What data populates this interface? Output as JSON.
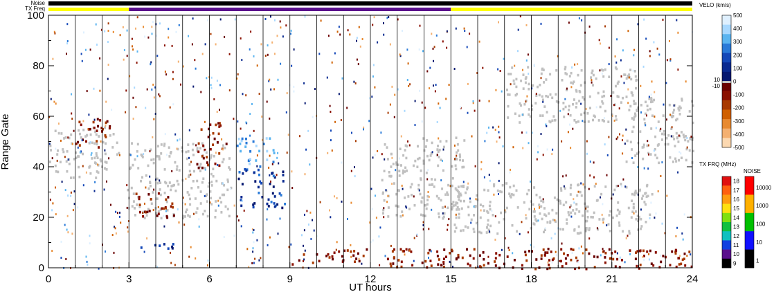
{
  "chart_data": {
    "type": "heatmap",
    "title": "",
    "xlabel": "UT hours",
    "ylabel": "Range Gate",
    "xlim": [
      0,
      24
    ],
    "ylim": [
      0,
      100
    ],
    "x_ticks": [
      "0",
      "3",
      "6",
      "9",
      "12",
      "15",
      "18",
      "21",
      "24"
    ],
    "y_ticks": [
      "0",
      "20",
      "40",
      "60",
      "80",
      "100"
    ],
    "status_bars": {
      "noise_label": "Noise",
      "txfreq_label": "TX Freq",
      "txfreq_segments": [
        {
          "start": 0,
          "end": 3,
          "color": "#ffff00"
        },
        {
          "start": 3,
          "end": 15,
          "color": "#5a0f8c"
        },
        {
          "start": 15,
          "end": 24,
          "color": "#ffff00"
        }
      ]
    },
    "velocity_colorbar": {
      "label": "VELO (km/s)",
      "ticks": [
        "500",
        "400",
        "300",
        "200",
        "100",
        "0",
        "-100",
        "-200",
        "-300",
        "-400",
        "-500"
      ],
      "ground_scatter_labels": [
        "10",
        "-10"
      ],
      "colors_positive": [
        "#dff0ff",
        "#a8d8ff",
        "#5ab4f0",
        "#2a7ad8",
        "#1448b8",
        "#0a2a90",
        "#061870"
      ],
      "colors_negative": [
        "#6a0000",
        "#8a1000",
        "#a83a00",
        "#d06000",
        "#e88a30",
        "#f4b070",
        "#fcd8b0"
      ],
      "ground_scatter_color": "#c0c0c0"
    },
    "txfreq_colorbar": {
      "label": "TX FRQ (MHz)",
      "ticks": [
        "18",
        "17",
        "16",
        "15",
        "14",
        "13",
        "12",
        "11",
        "10",
        "9"
      ],
      "colors": [
        "#e01010",
        "#ff6010",
        "#ff9c10",
        "#ffe010",
        "#80e010",
        "#10c040",
        "#10c0c0",
        "#1040e0",
        "#5a0f8c",
        "#000000"
      ]
    },
    "noise_colorbar": {
      "label": "NOISE",
      "ticks": [
        "10000",
        "1000",
        "100",
        "10",
        "1"
      ],
      "colors": [
        "#ff0000",
        "#ffb000",
        "#00c000",
        "#1010ff",
        "#000000"
      ]
    },
    "scatter_regions": [
      {
        "name": "ground-scatter-early",
        "t0": 0,
        "t1": 2.6,
        "g0": 36,
        "g1": 56,
        "kind": "ground"
      },
      {
        "name": "ground-scatter-morning",
        "t0": 2.9,
        "t1": 6.8,
        "g0": 20,
        "g1": 50,
        "kind": "ground"
      },
      {
        "name": "ground-scatter-midday",
        "t0": 12.4,
        "t1": 15.5,
        "g0": 20,
        "g1": 52,
        "kind": "ground"
      },
      {
        "name": "ground-scatter-afternoon",
        "t0": 15,
        "t1": 22.5,
        "g0": 14,
        "g1": 34,
        "kind": "ground"
      },
      {
        "name": "ground-scatter-evening",
        "t0": 21.5,
        "t1": 24,
        "g0": 42,
        "g1": 70,
        "kind": "ground"
      },
      {
        "name": "ground-scatter-upper",
        "t0": 17,
        "t1": 22,
        "g0": 58,
        "g1": 80,
        "kind": "ground"
      },
      {
        "name": "negative-early",
        "t0": 1,
        "t1": 2.4,
        "g0": 48,
        "g1": 60,
        "kind": "neg"
      },
      {
        "name": "negative-morning",
        "t0": 3.2,
        "t1": 4.8,
        "g0": 20,
        "g1": 30,
        "kind": "neg"
      },
      {
        "name": "negative-6h",
        "t0": 5.5,
        "t1": 6.6,
        "g0": 40,
        "g1": 58,
        "kind": "neg"
      },
      {
        "name": "positive-8h",
        "t0": 7,
        "t1": 8.8,
        "g0": 24,
        "g1": 40,
        "kind": "pos"
      },
      {
        "name": "positive-light-8h",
        "t0": 7,
        "t1": 8.4,
        "g0": 40,
        "g1": 52,
        "kind": "poslight"
      },
      {
        "name": "near-range-dark-red",
        "t0": 9,
        "t1": 24,
        "g0": 0,
        "g1": 8,
        "kind": "neg"
      },
      {
        "name": "positive-low-4h",
        "t0": 3.4,
        "t1": 5,
        "g0": 7,
        "g1": 10,
        "kind": "pos"
      }
    ]
  }
}
